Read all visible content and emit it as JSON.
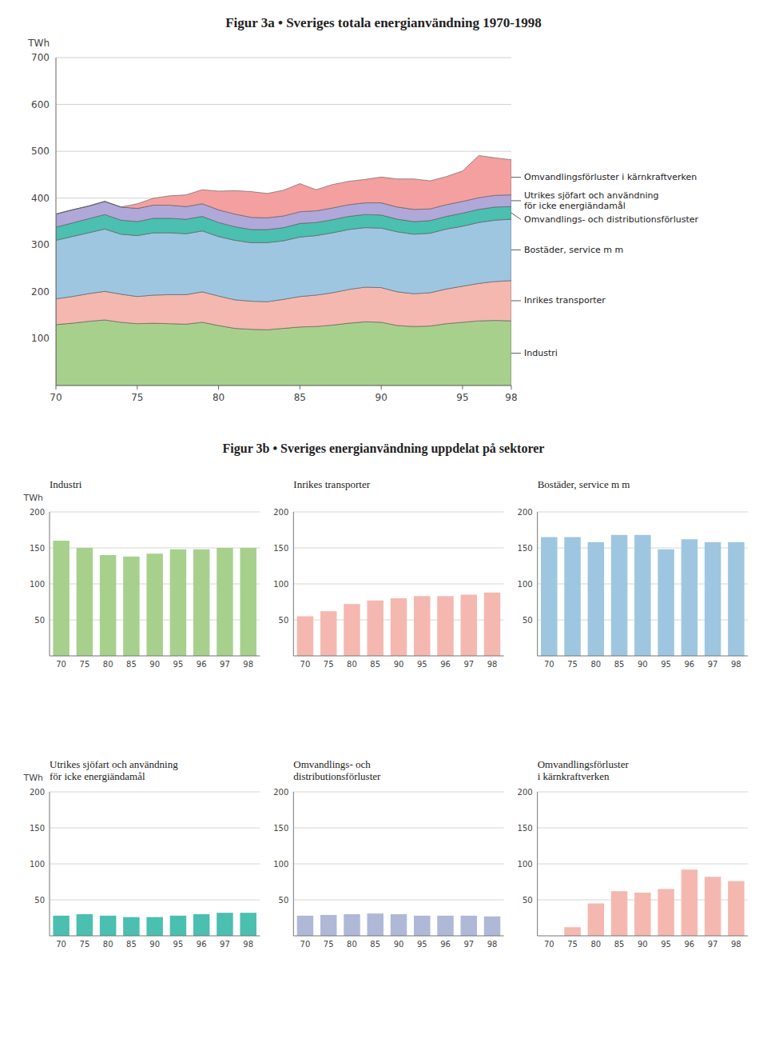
{
  "chart_data": [
    {
      "type": "area",
      "stacked": true,
      "title": "Figur 3a • Sveriges totala energianvändning 1970-1998",
      "ylabel": "TWh",
      "x": [
        70,
        71,
        72,
        73,
        74,
        75,
        76,
        77,
        78,
        79,
        80,
        81,
        82,
        83,
        84,
        85,
        86,
        87,
        88,
        89,
        90,
        91,
        92,
        93,
        94,
        95,
        96,
        97,
        98
      ],
      "xlim": [
        70,
        98
      ],
      "ylim": [
        0,
        700
      ],
      "xticks": [
        70,
        75,
        80,
        85,
        90,
        95,
        98
      ],
      "yticks": [
        100,
        200,
        300,
        400,
        500,
        600,
        700
      ],
      "grid": true,
      "series": [
        {
          "name": "Industri",
          "color": "#a8d08d",
          "values": [
            130,
            133,
            137,
            140,
            135,
            132,
            133,
            132,
            131,
            135,
            128,
            122,
            120,
            119,
            122,
            125,
            126,
            129,
            133,
            136,
            135,
            128,
            126,
            127,
            132,
            135,
            138,
            139,
            138
          ]
        },
        {
          "name": "Inrikes transporter",
          "color": "#f4b8b0",
          "values": [
            55,
            57,
            59,
            61,
            60,
            58,
            60,
            62,
            63,
            65,
            63,
            61,
            60,
            60,
            62,
            65,
            67,
            69,
            72,
            74,
            74,
            72,
            70,
            71,
            74,
            77,
            80,
            83,
            86
          ]
        },
        {
          "name": "Bostäder, service m m",
          "color": "#9ec6e0",
          "values": [
            125,
            128,
            130,
            133,
            128,
            130,
            133,
            132,
            130,
            130,
            127,
            127,
            125,
            126,
            125,
            127,
            127,
            128,
            128,
            127,
            127,
            128,
            127,
            127,
            128,
            128,
            130,
            131,
            131
          ]
        },
        {
          "name": "Omvandlings- och distributionsförluster",
          "color": "#4bbfb0",
          "values": [
            28,
            29,
            30,
            31,
            30,
            30,
            31,
            31,
            31,
            31,
            30,
            29,
            28,
            28,
            28,
            29,
            28,
            28,
            28,
            28,
            28,
            27,
            27,
            27,
            27,
            28,
            28,
            28,
            27
          ]
        },
        {
          "name": "Utrikes sjöfart och användning\nför icke energiändamål",
          "color": "#b0a8d8",
          "values": [
            28,
            28,
            27,
            28,
            28,
            28,
            28,
            28,
            27,
            27,
            27,
            27,
            26,
            25,
            25,
            25,
            25,
            25,
            25,
            25,
            26,
            26,
            26,
            25,
            25,
            25,
            25,
            25,
            25
          ]
        },
        {
          "name": "Omvandlingsförluster i kärnkraftverken",
          "color": "#f4a0a0",
          "values": [
            0,
            0,
            0,
            0,
            0,
            10,
            15,
            20,
            25,
            30,
            40,
            50,
            55,
            52,
            55,
            60,
            45,
            50,
            50,
            50,
            55,
            60,
            65,
            60,
            60,
            65,
            90,
            80,
            75
          ]
        }
      ]
    },
    {
      "type": "bar",
      "title": "Figur 3b • Sveriges energianvändning uppdelat på sektorer",
      "ylabel": "TWh",
      "categories": [
        "70",
        "75",
        "80",
        "85",
        "90",
        "95",
        "96",
        "97",
        "98"
      ],
      "ylim": [
        0,
        200
      ],
      "yticks": [
        50,
        100,
        150,
        200
      ],
      "grid": true,
      "series": [
        {
          "name": "Industri",
          "color": "#a8d08d",
          "values": [
            160,
            150,
            140,
            138,
            142,
            148,
            148,
            150,
            150
          ]
        },
        {
          "name": "Inrikes transporter",
          "color": "#f4b8b0",
          "values": [
            55,
            62,
            72,
            77,
            80,
            83,
            83,
            85,
            88
          ]
        },
        {
          "name": "Bostäder, service m m",
          "color": "#9ec6e0",
          "values": [
            165,
            165,
            158,
            168,
            168,
            148,
            162,
            158,
            158
          ]
        },
        {
          "name": "Utrikes sjöfart och användning\nför icke energiändamål",
          "color": "#4bbfb0",
          "values": [
            28,
            30,
            28,
            26,
            26,
            28,
            30,
            32,
            32
          ]
        },
        {
          "name": "Omvandlings- och\ndistributionsförluster",
          "color": "#b0b8d8",
          "values": [
            28,
            29,
            30,
            31,
            30,
            28,
            28,
            28,
            27
          ]
        },
        {
          "name": "Omvandlingsförluster\ni kärnkraftverken",
          "color": "#f4b8b0",
          "values": [
            0,
            12,
            45,
            62,
            60,
            65,
            92,
            82,
            76
          ]
        }
      ]
    }
  ]
}
